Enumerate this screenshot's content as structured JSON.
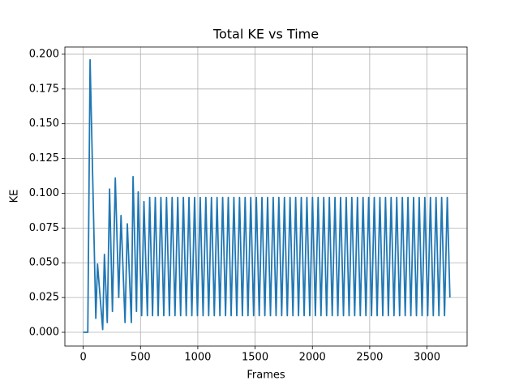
{
  "chart_data": {
    "type": "line",
    "title": "Total KE vs Time",
    "xlabel": "Frames",
    "ylabel": "KE",
    "xlim": [
      -160,
      3350
    ],
    "ylim": [
      -0.0099,
      0.2052
    ],
    "xticks": [
      0,
      500,
      1000,
      1500,
      2000,
      2500,
      3000
    ],
    "yticks": [
      {
        "value": 0,
        "label": "0.000"
      },
      0.025,
      {
        "value": 0.05,
        "label": "0.050"
      },
      0.075,
      {
        "value": 0.1,
        "label": "0.100"
      },
      0.125,
      {
        "value": 0.15,
        "label": "0.150"
      },
      0.175,
      {
        "value": 0.2,
        "label": "0.200"
      }
    ],
    "grid": true,
    "x": [
      0,
      40,
      60,
      110,
      125,
      170,
      185,
      210,
      230,
      255,
      280,
      310,
      330,
      365,
      385,
      420,
      435,
      465,
      480,
      510,
      530,
      560,
      580,
      605,
      629,
      654,
      678,
      703,
      727,
      752,
      776,
      801,
      825,
      850,
      874,
      899,
      923,
      948,
      972,
      997,
      1021,
      1046,
      1070,
      1095,
      1119,
      1144,
      1168,
      1193,
      1217,
      1242,
      1266,
      1291,
      1315,
      1340,
      1364,
      1389,
      1413,
      1438,
      1462,
      1487,
      1511,
      1536,
      1560,
      1585,
      1609,
      1634,
      1658,
      1683,
      1707,
      1732,
      1756,
      1781,
      1805,
      1830,
      1854,
      1879,
      1903,
      1928,
      1952,
      1977,
      2001,
      2026,
      2050,
      2075,
      2099,
      2124,
      2148,
      2173,
      2197,
      2222,
      2246,
      2271,
      2295,
      2320,
      2344,
      2369,
      2393,
      2418,
      2442,
      2467,
      2491,
      2516,
      2540,
      2565,
      2589,
      2614,
      2638,
      2663,
      2687,
      2712,
      2736,
      2761,
      2785,
      2810,
      2834,
      2859,
      2883,
      2908,
      2932,
      2957,
      2981,
      3006,
      3030,
      3055,
      3079,
      3104,
      3128,
      3153,
      3177,
      3200
    ],
    "series": [
      {
        "color": "#1f77b4",
        "values": [
          0,
          0,
          0.196,
          0.01,
          0.049,
          0.002,
          0.056,
          0.007,
          0.103,
          0.015,
          0.111,
          0.025,
          0.084,
          0.007,
          0.078,
          0.007,
          0.112,
          0.015,
          0.101,
          0.012,
          0.094,
          0.012,
          0.097,
          0.012,
          0.097,
          0.012,
          0.097,
          0.012,
          0.097,
          0.012,
          0.097,
          0.012,
          0.097,
          0.012,
          0.097,
          0.012,
          0.097,
          0.012,
          0.097,
          0.012,
          0.097,
          0.012,
          0.097,
          0.012,
          0.097,
          0.012,
          0.097,
          0.012,
          0.097,
          0.012,
          0.097,
          0.012,
          0.097,
          0.012,
          0.097,
          0.012,
          0.097,
          0.012,
          0.097,
          0.012,
          0.097,
          0.012,
          0.097,
          0.012,
          0.097,
          0.012,
          0.097,
          0.012,
          0.097,
          0.012,
          0.097,
          0.012,
          0.097,
          0.012,
          0.097,
          0.012,
          0.097,
          0.012,
          0.097,
          0.012,
          0.097,
          0.012,
          0.097,
          0.012,
          0.097,
          0.012,
          0.097,
          0.012,
          0.097,
          0.012,
          0.097,
          0.012,
          0.097,
          0.012,
          0.097,
          0.012,
          0.097,
          0.012,
          0.097,
          0.012,
          0.097,
          0.012,
          0.097,
          0.012,
          0.097,
          0.012,
          0.097,
          0.012,
          0.097,
          0.012,
          0.097,
          0.012,
          0.097,
          0.012,
          0.097,
          0.012,
          0.097,
          0.012,
          0.097,
          0.012,
          0.097,
          0.012,
          0.097,
          0.012,
          0.097,
          0.012,
          0.097,
          0.012,
          0.097,
          0.025
        ]
      }
    ]
  }
}
